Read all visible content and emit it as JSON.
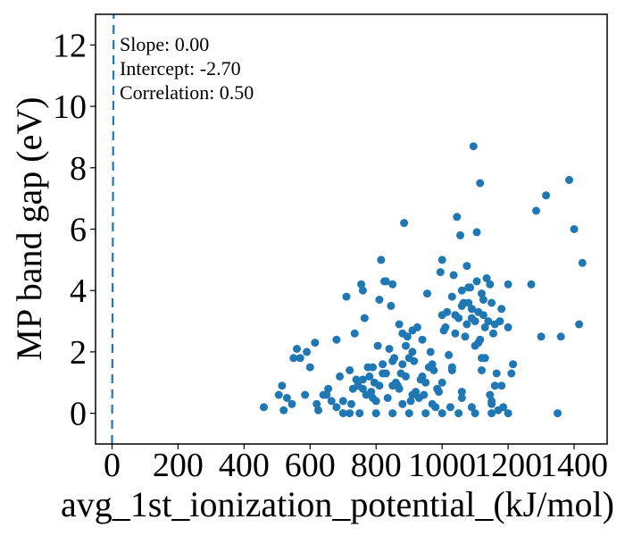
{
  "chart_data": {
    "type": "scatter",
    "title": "",
    "xlabel": "avg_1st_ionization_potential_(kJ/mol)",
    "ylabel": "MP band gap (eV)",
    "xlim": [
      -50,
      1500
    ],
    "ylim": [
      -1,
      13
    ],
    "x_ticks": [
      0,
      200,
      400,
      600,
      800,
      1000,
      1200,
      1400
    ],
    "y_ticks": [
      0,
      2,
      4,
      6,
      8,
      10,
      12
    ],
    "grid": false,
    "legend": "none",
    "colors": {
      "points": "#1f77b4",
      "fit_line": "#1f77b4"
    },
    "annotations": [
      "Slope: 0.00",
      "Intercept: -2.70",
      "Correlation: 0.50"
    ],
    "fit_line": {
      "slope": 0.0,
      "intercept": -2.7,
      "style": "dashed",
      "x_at_bottom": 0,
      "x_at_top": 5
    },
    "points": {
      "x": [
        460,
        505,
        515,
        520,
        530,
        545,
        560,
        570,
        585,
        600,
        615,
        625,
        640,
        655,
        665,
        680,
        690,
        700,
        710,
        720,
        725,
        735,
        745,
        755,
        765,
        775,
        785,
        795,
        805,
        815,
        825,
        835,
        845,
        855,
        865,
        875,
        885,
        895,
        905,
        915,
        925,
        935,
        945,
        955,
        965,
        975,
        985,
        995,
        1005,
        1015,
        1025,
        1035,
        1045,
        1055,
        1065,
        1075,
        1085,
        1095,
        1105,
        1115,
        1125,
        1135,
        1145,
        1155,
        1165,
        1175,
        1185,
        1200,
        1215,
        1270,
        1285,
        1300,
        1315,
        1350,
        1360,
        1385,
        1400,
        1415,
        1425,
        760,
        780,
        800,
        820,
        840,
        860,
        880,
        900,
        920,
        940,
        960,
        980,
        1000,
        1020,
        1040,
        1060,
        1080,
        1100,
        1120,
        1140,
        1160,
        740,
        770,
        790,
        810,
        830,
        850,
        870,
        890,
        910,
        930,
        950,
        970,
        990,
        1010,
        1030,
        1050,
        1070,
        1090,
        1110,
        1130,
        1150,
        1170,
        720,
        750,
        800,
        850,
        900,
        950,
        1000,
        1050,
        1100,
        1150,
        1200,
        810,
        830,
        870,
        890,
        910,
        1030,
        1060,
        1080,
        1100,
        1110,
        1130,
        1150,
        1060,
        1090,
        1120,
        760,
        850,
        880,
        1000,
        1040,
        1075,
        1090,
        1105,
        1115,
        1125,
        1145,
        1160,
        1180,
        1200,
        700,
        730,
        760,
        790,
        820,
        850,
        880,
        910,
        940,
        970,
        1000,
        1030,
        1060,
        1090,
        1120,
        1150,
        1180,
        1210,
        620,
        650,
        680,
        550,
        590
      ],
      "y": [
        0.2,
        0.6,
        0.9,
        0.1,
        0.5,
        0.3,
        2.1,
        1.8,
        0.6,
        1.5,
        2.3,
        0.1,
        0.6,
        0.8,
        0.4,
        2.4,
        1.2,
        0.0,
        3.8,
        1.4,
        0.3,
        2.6,
        0.9,
        4.2,
        3.1,
        1.5,
        0.7,
        1.0,
        2.2,
        5.0,
        4.3,
        0.5,
        3.5,
        1.8,
        0.9,
        1.3,
        6.2,
        2.5,
        0.4,
        1.7,
        2.8,
        1.1,
        0.6,
        3.9,
        2.0,
        1.4,
        0.8,
        4.6,
        2.7,
        3.3,
        0.2,
        4.5,
        6.4,
        5.8,
        3.6,
        2.9,
        4.1,
        8.7,
        5.9,
        7.5,
        3.2,
        4.4,
        0.6,
        2.6,
        1.3,
        3.0,
        0.2,
        2.8,
        1.6,
        4.2,
        6.6,
        2.5,
        7.1,
        0.0,
        2.5,
        7.6,
        6.0,
        2.9,
        4.9,
        0.8,
        1.2,
        0.4,
        1.6,
        2.1,
        1.0,
        0.3,
        1.8,
        0.7,
        2.4,
        1.5,
        0.2,
        3.2,
        1.9,
        2.6,
        0.5,
        3.6,
        2.2,
        1.4,
        3.0,
        0.9,
        1.1,
        0.6,
        1.5,
        0.9,
        1.3,
        1.7,
        0.8,
        1.2,
        2.0,
        0.5,
        1.0,
        1.6,
        0.7,
        2.8,
        1.4,
        3.1,
        2.5,
        3.4,
        2.3,
        1.8,
        0.3,
        0.1,
        0.0,
        0.0,
        0.0,
        0.0,
        0.0,
        0.0,
        0.0,
        0.0,
        0.0,
        0.0,
        0.0,
        3.7,
        4.3,
        2.9,
        2.2,
        2.7,
        3.8,
        3.5,
        4.1,
        3.0,
        3.3,
        2.8,
        3.6,
        4.0,
        3.4,
        3.9,
        4.0,
        4.2,
        2.6,
        5.0,
        3.2,
        4.8,
        3.1,
        4.3,
        2.4,
        3.7,
        4.2,
        2.9,
        3.4,
        4.2,
        0.4,
        0.8,
        1.1,
        0.5,
        1.3,
        0.9,
        1.6,
        0.6,
        1.2,
        0.3,
        1.0,
        1.5,
        0.7,
        0.2,
        1.8,
        0.4,
        0.9,
        1.3,
        0.3,
        0.6,
        0.2,
        1.8,
        2.0
      ]
    }
  }
}
